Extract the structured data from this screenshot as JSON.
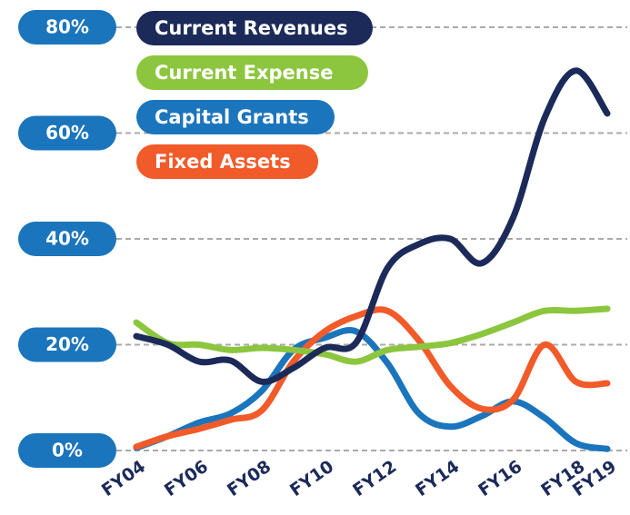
{
  "chart_data": {
    "type": "line",
    "categories": [
      "FY04",
      null,
      "FY06",
      null,
      "FY08",
      null,
      "FY10",
      null,
      "FY12",
      null,
      "FY14",
      null,
      "FY16",
      null,
      "FY18",
      "FY19"
    ],
    "series": [
      {
        "name": "Current Revenues",
        "color": "#1c2a5a",
        "values": [
          21.6,
          20,
          16.8,
          17,
          13,
          15.6,
          19.4,
          20.4,
          34.5,
          39,
          40,
          35.4,
          44,
          62.8,
          71.8,
          63.7
        ]
      },
      {
        "name": "Current Expense",
        "color": "#8cc63f",
        "values": [
          24.2,
          20.3,
          20,
          19,
          19.4,
          19,
          18.2,
          16.8,
          19,
          19.6,
          20.3,
          22,
          24.2,
          26.4,
          26.4,
          26.8
        ]
      },
      {
        "name": "Capital Grants",
        "color": "#1b75bc",
        "values": [
          0.5,
          2.7,
          5.3,
          7,
          11.3,
          19,
          21.3,
          22.5,
          16.5,
          7,
          4.5,
          6.5,
          9.3,
          6.2,
          1.4,
          0.3
        ]
      },
      {
        "name": "Fixed Assets",
        "color": "#f15a29",
        "values": [
          0.7,
          2.7,
          4.1,
          5.8,
          7.6,
          16.8,
          22.5,
          25.4,
          26.4,
          20.8,
          12.2,
          7.9,
          9.6,
          20,
          13,
          12.7
        ]
      }
    ],
    "ylim": [
      0,
      80
    ],
    "yticks": [
      {
        "value": 0,
        "label": "0%"
      },
      {
        "value": 20,
        "label": "20%"
      },
      {
        "value": 40,
        "label": "40%"
      },
      {
        "value": 60,
        "label": "60%"
      },
      {
        "value": 80,
        "label": "80%"
      }
    ],
    "tick_color": "#1b75bc",
    "grid": true,
    "legend": "top-left"
  }
}
